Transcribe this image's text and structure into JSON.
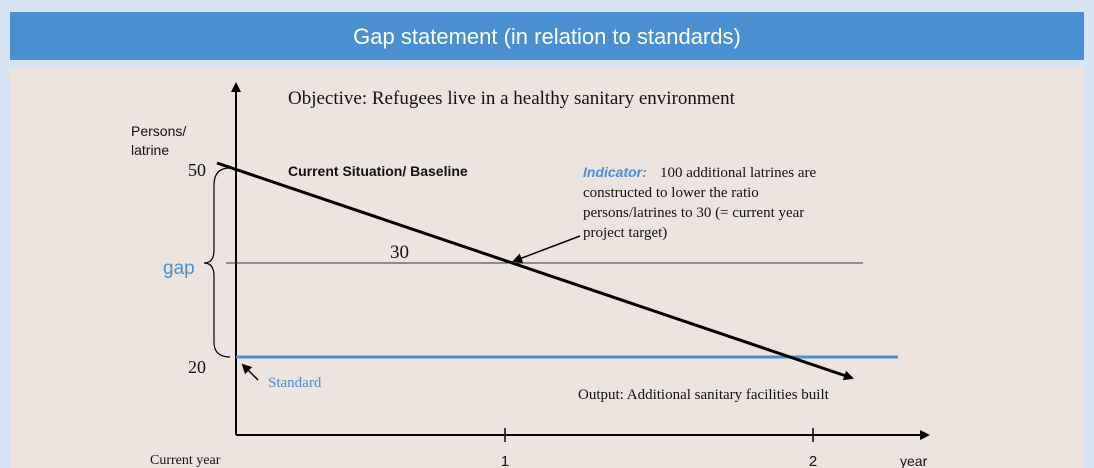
{
  "header": {
    "title": "Gap statement (in relation to standards)"
  },
  "diagram": {
    "objective": "Objective: Refugees live in a healthy sanitary environment",
    "y_axis_label": [
      "Persons/",
      "latrine"
    ],
    "y_values": [
      "50",
      "20"
    ],
    "baseline_label": "Current Situation/ Baseline",
    "indicator": {
      "label": "Indicator:",
      "lines": [
        "100 additional latrines are",
        "constructed to lower the ratio",
        "persons/latrines to 30 (= current year",
        "project target)"
      ]
    },
    "target_label": "30",
    "gap_label": "gap",
    "standard_label": "Standard",
    "output_label": "Output: Additional sanitary facilities built",
    "x_labels": [
      "Current year",
      "1",
      "2",
      "year"
    ]
  }
}
